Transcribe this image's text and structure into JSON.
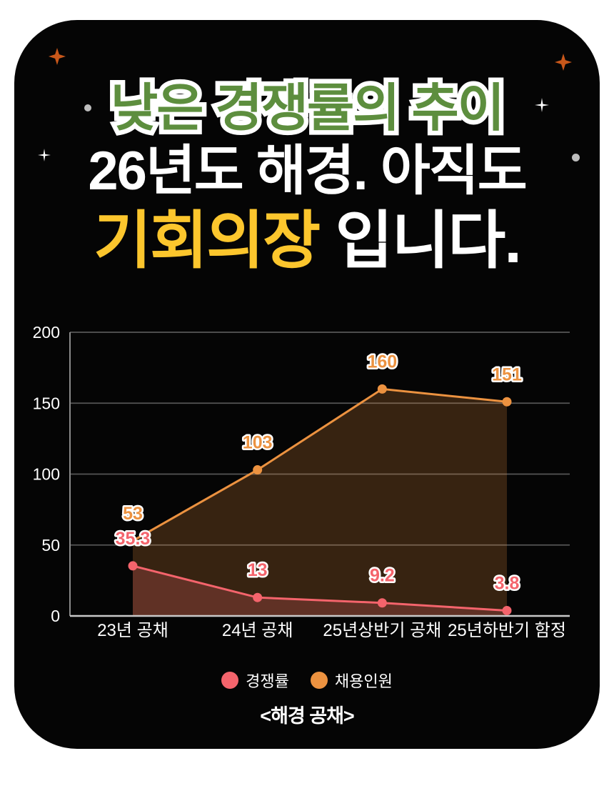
{
  "card": {
    "background_color": "#050505",
    "title": {
      "line1": "낮은 경쟁률의 추이",
      "line1_color": "#5d8e3e",
      "line1_outline_color": "#ffffff",
      "line2": "26년도 해경. 아직도",
      "line2_color": "#ffffff",
      "line3_highlight": "기회의장",
      "line3_highlight_color": "#fcc62d",
      "line3_rest": " 입니다.",
      "line3_rest_color": "#ffffff"
    },
    "caption": "<해경 공채>"
  },
  "decorations": {
    "star_color": "#c8571a",
    "sparkle_color": "#ffffff",
    "dot_color": "#bdbdbd"
  },
  "chart_data": {
    "type": "line",
    "title": "",
    "xlabel": "",
    "ylabel": "",
    "categories": [
      "23년 공채",
      "24년 공채",
      "25년상반기 공채",
      "25년하반기 함정"
    ],
    "series": [
      {
        "name": "경쟁률",
        "values": [
          35.3,
          13,
          9.2,
          3.8
        ],
        "color": "#f4646c",
        "marker": "circle",
        "area_fill": true
      },
      {
        "name": "채용인원",
        "values": [
          53,
          103,
          160,
          151
        ],
        "color": "#ec9240",
        "marker": "circle",
        "area_fill": true
      }
    ],
    "ylim": [
      0,
      200
    ],
    "yticks": [
      0,
      50,
      100,
      150,
      200
    ],
    "grid": true,
    "grid_color": "#565656",
    "background": "#050505",
    "tick_color": "#ffffff",
    "legend_position": "bottom",
    "data_labels": true,
    "data_label_outline": "#ffffff"
  }
}
